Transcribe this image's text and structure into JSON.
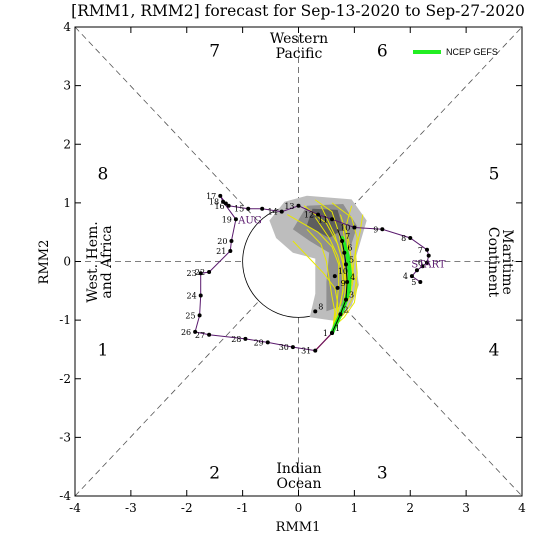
{
  "chart_data": {
    "type": "scatter",
    "title": "[RMM1, RMM2] forecast for Sep-13-2020 to Sep-27-2020",
    "xlabel": "RMM1",
    "ylabel": "RMM2",
    "xlim": [
      -4,
      4
    ],
    "ylim": [
      -4,
      4
    ],
    "xticks": [
      "-4",
      "-3",
      "-2",
      "-1",
      "0",
      "1",
      "2",
      "3",
      "4"
    ],
    "yticks": [
      "-4",
      "-3",
      "-2",
      "-1",
      "0",
      "1",
      "2",
      "3",
      "4"
    ],
    "phases": [
      {
        "label": "1",
        "x": -3.5,
        "y": -1.5
      },
      {
        "label": "2",
        "x": -1.5,
        "y": -3.6
      },
      {
        "label": "3",
        "x": 1.5,
        "y": -3.6
      },
      {
        "label": "4",
        "x": 3.5,
        "y": -1.5
      },
      {
        "label": "5",
        "x": 3.5,
        "y": 1.5
      },
      {
        "label": "6",
        "x": 1.5,
        "y": 3.6
      },
      {
        "label": "7",
        "x": -1.5,
        "y": 3.6
      },
      {
        "label": "8",
        "x": -3.5,
        "y": 1.5
      }
    ],
    "regions": {
      "top": [
        "Western",
        "Pacific"
      ],
      "bottom": [
        "Indian",
        "Ocean"
      ],
      "left": [
        "West. Hem.",
        "and Africa"
      ],
      "right": [
        "Maritime",
        "Continent"
      ]
    },
    "legend": {
      "label": "NCEP GEFS",
      "color": "#22ee22",
      "position": "top-right"
    },
    "month_labels": [
      {
        "text": "AUG",
        "x": -1.08,
        "y": 0.65
      },
      {
        "text": "START",
        "x": 2.02,
        "y": -0.1
      }
    ],
    "observed": {
      "name": "Observed",
      "color": "#5a1a6e",
      "points": [
        {
          "d": "5",
          "x": 2.18,
          "y": -0.35
        },
        {
          "d": "4",
          "x": 2.03,
          "y": -0.25
        },
        {
          "d": "",
          "x": 2.12,
          "y": -0.15
        },
        {
          "d": "",
          "x": 2.22,
          "y": -0.08
        },
        {
          "d": "6",
          "x": 2.3,
          "y": -0.02
        },
        {
          "d": "",
          "x": 2.33,
          "y": 0.1
        },
        {
          "d": "7",
          "x": 2.3,
          "y": 0.2
        },
        {
          "d": "8",
          "x": 2.0,
          "y": 0.4
        },
        {
          "d": "9",
          "x": 1.5,
          "y": 0.55
        },
        {
          "d": "10",
          "x": 1.0,
          "y": 0.58
        },
        {
          "d": "11",
          "x": 0.6,
          "y": 0.72
        },
        {
          "d": "12",
          "x": 0.35,
          "y": 0.8
        },
        {
          "d": "13",
          "x": 0.0,
          "y": 0.95
        },
        {
          "d": "14",
          "x": -0.3,
          "y": 0.85
        },
        {
          "d": "",
          "x": -0.65,
          "y": 0.9
        },
        {
          "d": "15",
          "x": -0.9,
          "y": 0.9
        },
        {
          "d": "16",
          "x": -1.25,
          "y": 0.95
        },
        {
          "d": "",
          "x": -1.3,
          "y": 0.99
        },
        {
          "d": "17",
          "x": -1.4,
          "y": 1.12
        },
        {
          "d": "18",
          "x": -1.35,
          "y": 1.02
        },
        {
          "d": "19",
          "x": -1.12,
          "y": 0.72
        },
        {
          "d": "20",
          "x": -1.2,
          "y": 0.35
        },
        {
          "d": "21",
          "x": -1.22,
          "y": 0.18
        },
        {
          "d": "22",
          "x": -1.6,
          "y": -0.18
        },
        {
          "d": "23",
          "x": -1.75,
          "y": -0.2
        },
        {
          "d": "24",
          "x": -1.75,
          "y": -0.58
        },
        {
          "d": "25",
          "x": -1.77,
          "y": -0.92
        },
        {
          "d": "26",
          "x": -1.85,
          "y": -1.2
        },
        {
          "d": "27",
          "x": -1.6,
          "y": -1.25
        },
        {
          "d": "28",
          "x": -0.95,
          "y": -1.32
        },
        {
          "d": "29",
          "x": -0.55,
          "y": -1.38
        },
        {
          "d": "30",
          "x": -0.1,
          "y": -1.46
        },
        {
          "d": "31",
          "x": 0.3,
          "y": -1.52
        },
        {
          "d": "1",
          "x": 0.6,
          "y": -1.22
        }
      ]
    },
    "ensemble_mean": {
      "name": "Ensemble mean",
      "color": "#000000",
      "points": [
        {
          "d": "",
          "x": 0.6,
          "y": -1.22
        },
        {
          "d": "",
          "x": 0.75,
          "y": -0.9
        },
        {
          "d": "",
          "x": 0.85,
          "y": -0.65
        },
        {
          "d": "",
          "x": 0.87,
          "y": -0.35
        },
        {
          "d": "",
          "x": 0.85,
          "y": -0.05
        },
        {
          "d": "",
          "x": 0.82,
          "y": 0.15
        },
        {
          "d": "",
          "x": 0.78,
          "y": 0.35
        },
        {
          "d": "",
          "x": 0.7,
          "y": 0.55
        }
      ]
    },
    "gefs": {
      "name": "NCEP GEFS",
      "color": "#22ee22",
      "points": [
        {
          "d": "",
          "x": 0.6,
          "y": -1.22
        },
        {
          "d": "",
          "x": 0.8,
          "y": -0.8
        },
        {
          "d": "",
          "x": 0.9,
          "y": -0.5
        },
        {
          "d": "",
          "x": 0.92,
          "y": -0.2
        },
        {
          "d": "",
          "x": 0.88,
          "y": 0.1
        },
        {
          "d": "",
          "x": 0.78,
          "y": 0.4
        }
      ]
    },
    "forecast_days": [
      {
        "d": "1",
        "x": 0.6,
        "y": -1.22
      },
      {
        "d": "2",
        "x": 0.75,
        "y": -0.9
      },
      {
        "d": "3",
        "x": 0.85,
        "y": -0.65
      },
      {
        "d": "4",
        "x": 0.87,
        "y": -0.35
      },
      {
        "d": "5",
        "x": 0.85,
        "y": -0.05
      },
      {
        "d": "6",
        "x": 0.82,
        "y": 0.15
      },
      {
        "d": "7",
        "x": 0.78,
        "y": 0.35
      },
      {
        "d": "8",
        "x": 0.3,
        "y": -0.85
      },
      {
        "d": "9",
        "x": 0.7,
        "y": -0.45
      },
      {
        "d": "10",
        "x": 0.65,
        "y": -0.25
      }
    ],
    "spread_outer": [
      [
        -0.25,
        1.02
      ],
      [
        0.15,
        1.12
      ],
      [
        0.95,
        1.06
      ],
      [
        1.22,
        0.7
      ],
      [
        1.02,
        0.05
      ],
      [
        1.08,
        -0.4
      ],
      [
        0.95,
        -0.75
      ],
      [
        0.7,
        -1.02
      ],
      [
        0.2,
        -0.95
      ],
      [
        0.3,
        -0.55
      ],
      [
        0.3,
        0.05
      ],
      [
        -0.1,
        0.15
      ],
      [
        -0.4,
        0.4
      ],
      [
        -0.52,
        0.7
      ]
    ],
    "spread_inner": [
      [
        0.15,
        0.95
      ],
      [
        0.8,
        0.98
      ],
      [
        1.05,
        0.6
      ],
      [
        0.88,
        0.1
      ],
      [
        0.95,
        -0.4
      ],
      [
        0.8,
        -0.75
      ],
      [
        0.5,
        -0.85
      ],
      [
        0.5,
        -0.35
      ],
      [
        0.55,
        0.15
      ],
      [
        0.2,
        0.35
      ],
      [
        -0.1,
        0.55
      ]
    ],
    "spread_core": [
      [
        0.25,
        0.9
      ],
      [
        0.7,
        0.88
      ],
      [
        0.8,
        0.55
      ],
      [
        0.55,
        0.4
      ],
      [
        0.15,
        0.62
      ]
    ],
    "members": [
      [
        [
          0.62,
          -1.12
        ],
        [
          0.78,
          -0.8
        ],
        [
          0.9,
          -0.45
        ],
        [
          0.92,
          -0.1
        ],
        [
          0.88,
          0.25
        ],
        [
          0.85,
          0.6
        ],
        [
          0.95,
          0.95
        ]
      ],
      [
        [
          0.62,
          -1.12
        ],
        [
          0.72,
          -0.82
        ],
        [
          0.8,
          -0.5
        ],
        [
          0.78,
          -0.2
        ],
        [
          0.7,
          0.1
        ],
        [
          0.55,
          0.4
        ],
        [
          0.3,
          0.75
        ]
      ],
      [
        [
          0.62,
          -1.12
        ],
        [
          0.85,
          -0.85
        ],
        [
          1.0,
          -0.55
        ],
        [
          1.05,
          -0.2
        ],
        [
          1.02,
          0.15
        ],
        [
          1.1,
          0.5
        ],
        [
          1.15,
          0.8
        ]
      ],
      [
        [
          0.62,
          -1.12
        ],
        [
          0.65,
          -0.85
        ],
        [
          0.6,
          -0.6
        ],
        [
          0.55,
          -0.3
        ],
        [
          0.5,
          0.0
        ],
        [
          0.4,
          0.3
        ],
        [
          0.15,
          0.55
        ]
      ],
      [
        [
          0.62,
          -1.12
        ],
        [
          0.8,
          -0.75
        ],
        [
          0.85,
          -0.4
        ],
        [
          0.8,
          -0.05
        ],
        [
          0.7,
          0.3
        ],
        [
          0.5,
          0.65
        ],
        [
          0.1,
          0.95
        ]
      ],
      [
        [
          0.62,
          -1.12
        ],
        [
          0.75,
          -0.9
        ],
        [
          0.92,
          -0.6
        ],
        [
          0.98,
          -0.3
        ],
        [
          0.95,
          0.0
        ],
        [
          0.9,
          0.35
        ],
        [
          0.75,
          0.8
        ]
      ],
      [
        [
          0.62,
          -1.12
        ],
        [
          0.7,
          -0.95
        ],
        [
          0.7,
          -0.7
        ],
        [
          0.65,
          -0.45
        ],
        [
          0.45,
          -0.2
        ],
        [
          0.2,
          0.05
        ],
        [
          -0.1,
          0.35
        ]
      ],
      [
        [
          0.62,
          -1.12
        ],
        [
          0.85,
          -0.7
        ],
        [
          0.95,
          -0.35
        ],
        [
          1.0,
          0.05
        ],
        [
          1.05,
          0.4
        ],
        [
          0.95,
          0.75
        ],
        [
          0.6,
          1.0
        ]
      ],
      [
        [
          0.62,
          -1.12
        ],
        [
          0.78,
          -0.85
        ],
        [
          0.88,
          -0.6
        ],
        [
          0.85,
          -0.25
        ],
        [
          0.78,
          0.05
        ],
        [
          0.65,
          0.45
        ],
        [
          0.4,
          0.95
        ]
      ],
      [
        [
          0.62,
          -1.12
        ],
        [
          0.82,
          -0.95
        ],
        [
          1.0,
          -0.7
        ],
        [
          1.05,
          -0.4
        ],
        [
          0.95,
          -0.1
        ],
        [
          0.85,
          0.2
        ],
        [
          0.8,
          0.55
        ]
      ],
      [
        [
          0.62,
          -1.12
        ],
        [
          0.68,
          -0.8
        ],
        [
          0.72,
          -0.4
        ],
        [
          0.72,
          -0.05
        ],
        [
          0.6,
          0.25
        ],
        [
          0.35,
          0.5
        ],
        [
          -0.2,
          0.8
        ]
      ],
      [
        [
          0.62,
          -1.12
        ],
        [
          0.76,
          -0.7
        ],
        [
          0.82,
          -0.3
        ],
        [
          0.8,
          0.1
        ],
        [
          0.72,
          0.5
        ],
        [
          0.6,
          0.85
        ],
        [
          0.3,
          1.05
        ]
      ]
    ]
  }
}
